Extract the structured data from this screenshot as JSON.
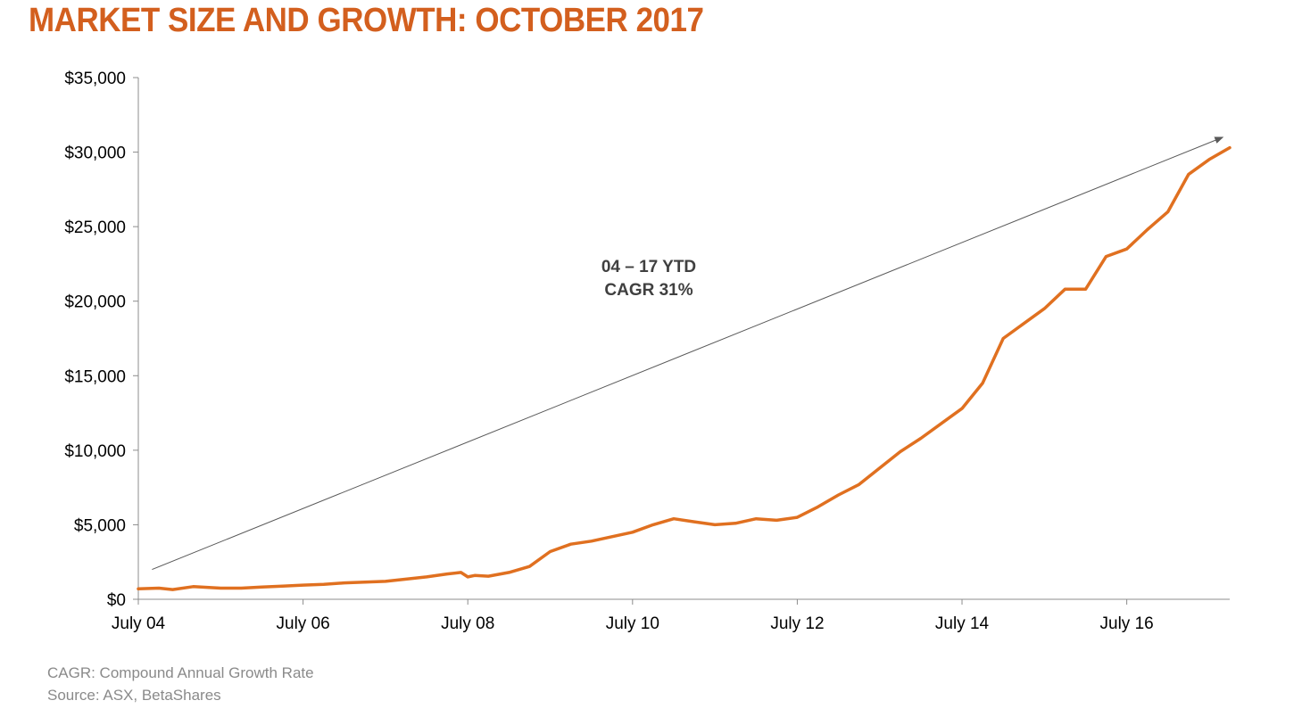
{
  "title": "MARKET SIZE AND GROWTH: OCTOBER 2017",
  "footnotes": {
    "definition": "CAGR: Compound Annual Growth Rate",
    "source": "Source: ASX, BetaShares"
  },
  "colors": {
    "title": "#d35f1e",
    "series": "#e07020",
    "axis": "#8c8c8c",
    "arrow": "#595959",
    "footnote": "#8a8a8a"
  },
  "chart_data": {
    "type": "line",
    "title": "MARKET SIZE AND GROWTH: OCTOBER 2017",
    "xlabel": "",
    "ylabel": "",
    "grid": false,
    "legend": "none",
    "ylim": [
      0,
      35000
    ],
    "xlim": [
      "2004-07",
      "2017-10"
    ],
    "y_ticks": [
      {
        "value": 0,
        "label": "$0"
      },
      {
        "value": 5000,
        "label": "$5,000"
      },
      {
        "value": 10000,
        "label": "$10,000"
      },
      {
        "value": 15000,
        "label": "$15,000"
      },
      {
        "value": 20000,
        "label": "$20,000"
      },
      {
        "value": 25000,
        "label": "$25,000"
      },
      {
        "value": 30000,
        "label": "$30,000"
      },
      {
        "value": 35000,
        "label": "$35,000"
      }
    ],
    "x_ticks": [
      {
        "value": "2004-07",
        "label": "July 04"
      },
      {
        "value": "2006-07",
        "label": "July 06"
      },
      {
        "value": "2008-07",
        "label": "July 08"
      },
      {
        "value": "2010-07",
        "label": "July 10"
      },
      {
        "value": "2012-07",
        "label": "July 12"
      },
      {
        "value": "2014-07",
        "label": "July 14"
      },
      {
        "value": "2016-07",
        "label": "July 16"
      }
    ],
    "annotation": {
      "lines": [
        "04 – 17 YTD",
        "CAGR 31%"
      ],
      "arrow_from": {
        "x": "2004-09",
        "y": 2000
      },
      "arrow_to": {
        "x": "2017-09",
        "y": 31000
      }
    },
    "series": [
      {
        "values": [
          [
            "2004-07",
            700
          ],
          [
            "2004-10",
            750
          ],
          [
            "2004-12",
            650
          ],
          [
            "2005-03",
            850
          ],
          [
            "2005-07",
            750
          ],
          [
            "2005-10",
            750
          ],
          [
            "2006-01",
            820
          ],
          [
            "2006-04",
            880
          ],
          [
            "2006-07",
            950
          ],
          [
            "2006-10",
            1000
          ],
          [
            "2007-01",
            1100
          ],
          [
            "2007-04",
            1150
          ],
          [
            "2007-07",
            1200
          ],
          [
            "2007-10",
            1350
          ],
          [
            "2008-01",
            1500
          ],
          [
            "2008-04",
            1700
          ],
          [
            "2008-06",
            1800
          ],
          [
            "2008-07",
            1500
          ],
          [
            "2008-08",
            1600
          ],
          [
            "2008-10",
            1550
          ],
          [
            "2009-01",
            1800
          ],
          [
            "2009-04",
            2200
          ],
          [
            "2009-07",
            3200
          ],
          [
            "2009-10",
            3700
          ],
          [
            "2010-01",
            3900
          ],
          [
            "2010-04",
            4200
          ],
          [
            "2010-07",
            4500
          ],
          [
            "2010-10",
            5000
          ],
          [
            "2011-01",
            5400
          ],
          [
            "2011-04",
            5200
          ],
          [
            "2011-07",
            5000
          ],
          [
            "2011-10",
            5100
          ],
          [
            "2012-01",
            5400
          ],
          [
            "2012-04",
            5300
          ],
          [
            "2012-07",
            5500
          ],
          [
            "2012-10",
            6200
          ],
          [
            "2013-01",
            7000
          ],
          [
            "2013-04",
            7700
          ],
          [
            "2013-07",
            8800
          ],
          [
            "2013-10",
            9900
          ],
          [
            "2014-01",
            10800
          ],
          [
            "2014-04",
            11800
          ],
          [
            "2014-07",
            12800
          ],
          [
            "2014-10",
            14500
          ],
          [
            "2015-01",
            17500
          ],
          [
            "2015-04",
            18500
          ],
          [
            "2015-07",
            19500
          ],
          [
            "2015-10",
            20800
          ],
          [
            "2016-01",
            20800
          ],
          [
            "2016-04",
            23000
          ],
          [
            "2016-07",
            23500
          ],
          [
            "2016-10",
            24800
          ],
          [
            "2017-01",
            26000
          ],
          [
            "2017-04",
            28500
          ],
          [
            "2017-07",
            29500
          ],
          [
            "2017-10",
            30300
          ]
        ]
      }
    ]
  }
}
